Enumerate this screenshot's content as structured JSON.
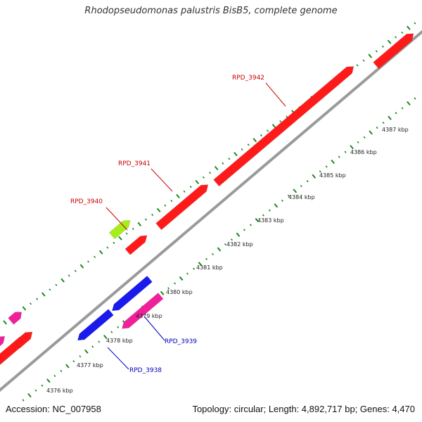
{
  "title": "Rhodopseudomonas palustris BisB5, complete genome",
  "footer": {
    "accession": "Accession: NC_007958",
    "summary": "Topology: circular; Length: 4,892,717 bp; Genes: 4,470"
  },
  "colors": {
    "forward_gene": "#ff1a1a",
    "reverse_gene": "#1a1aee",
    "pink_gene": "#f0209a",
    "rna_gene": "#a6ee1a",
    "backbone": "#9a9a9a",
    "tick": "#1a8a1a",
    "forward_label": "#cc0000",
    "reverse_label": "#0000bb"
  },
  "ticks": [
    {
      "label": "4376 kbp"
    },
    {
      "label": "4377 kbp"
    },
    {
      "label": "4378 kbp"
    },
    {
      "label": "4379 kbp"
    },
    {
      "label": "4380 kbp"
    },
    {
      "label": "4381 kbp"
    },
    {
      "label": "4382 kbp"
    },
    {
      "label": "4383 kbp"
    },
    {
      "label": "4384 kbp"
    },
    {
      "label": "4385 kbp"
    },
    {
      "label": "4386 kbp"
    },
    {
      "label": "4387 kbp"
    }
  ],
  "gene_labels": [
    {
      "name": "RPD_3942",
      "strand": "forward"
    },
    {
      "name": "RPD_3941",
      "strand": "forward"
    },
    {
      "name": "RPD_3940",
      "strand": "forward"
    },
    {
      "name": "RPD_3939",
      "strand": "reverse"
    },
    {
      "name": "RPD_3938",
      "strand": "reverse"
    }
  ]
}
